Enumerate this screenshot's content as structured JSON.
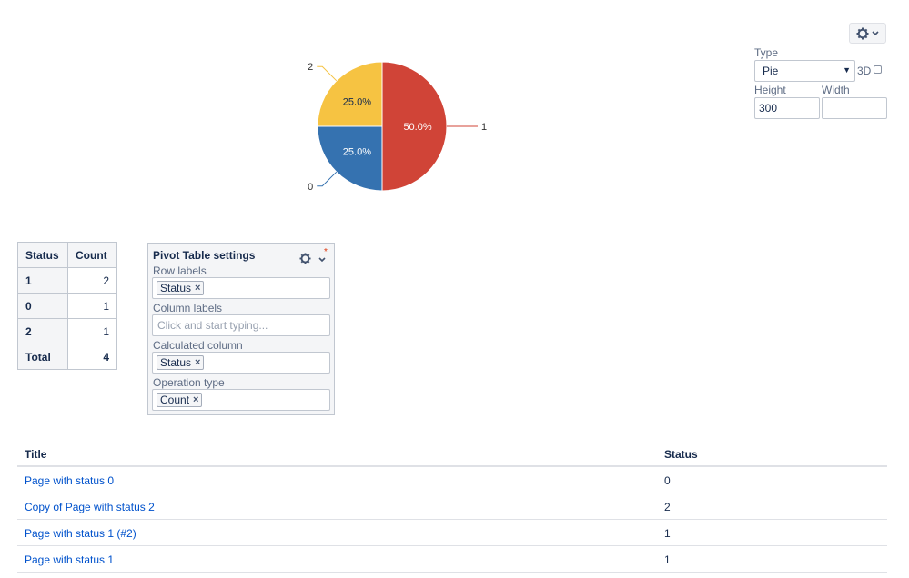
{
  "toolbar": {
    "gear_icon": "gear-icon",
    "chevron_icon": "chevron-down-icon"
  },
  "chart_settings": {
    "type_label": "Type",
    "type_value": "Pie",
    "three_d_label": "3D",
    "three_d_checked": false,
    "height_label": "Height",
    "height_value": "300",
    "width_label": "Width",
    "width_value": ""
  },
  "chart_data": {
    "type": "pie",
    "categories": [
      "1",
      "0",
      "2"
    ],
    "values": [
      2,
      1,
      1
    ],
    "percent_labels": [
      "50.0%",
      "25.0%",
      "25.0%"
    ],
    "colors": [
      "#d04437",
      "#3572b0",
      "#f6c342"
    ]
  },
  "summary": {
    "headers": [
      "Status",
      "Count"
    ],
    "rows": [
      [
        "1",
        "2"
      ],
      [
        "0",
        "1"
      ],
      [
        "2",
        "1"
      ]
    ],
    "total_label": "Total",
    "total_value": "4"
  },
  "pivot": {
    "title": "Pivot Table settings",
    "row_labels_label": "Row labels",
    "row_labels_chip": "Status",
    "column_labels_label": "Column labels",
    "column_labels_placeholder": "Click and start typing...",
    "calculated_column_label": "Calculated column",
    "calculated_column_chip": "Status",
    "operation_type_label": "Operation type",
    "operation_type_chip": "Count",
    "remove_glyph": "×",
    "required_marker": "*"
  },
  "results": {
    "headers": [
      "Title",
      "Status"
    ],
    "rows": [
      [
        "Page with status 0",
        "0"
      ],
      [
        "Copy of Page with status 2",
        "2"
      ],
      [
        "Page with status 1 (#2)",
        "1"
      ],
      [
        "Page with status 1",
        "1"
      ]
    ]
  }
}
